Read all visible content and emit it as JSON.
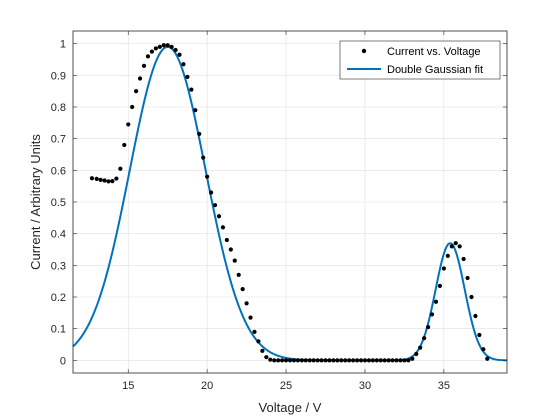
{
  "chart_data": {
    "type": "scatter",
    "title": "",
    "xlabel": "Voltage / V",
    "ylabel": "Current / Arbitrary Units",
    "xlim": [
      11.5,
      39
    ],
    "ylim": [
      -0.04,
      1.04
    ],
    "xticks": [
      15,
      20,
      25,
      30,
      35
    ],
    "xtick_labels": [
      "15",
      "20",
      "25",
      "30",
      "35"
    ],
    "yticks": [
      0,
      0.1,
      0.2,
      0.3,
      0.4,
      0.5,
      0.6,
      0.7,
      0.8,
      0.9,
      1
    ],
    "ytick_labels": [
      "0",
      "0.1",
      "0.2",
      "0.3",
      "0.4",
      "0.5",
      "0.6",
      "0.7",
      "0.8",
      "0.9",
      "1"
    ],
    "grid": true,
    "legend_position": "top-right",
    "series": [
      {
        "name": "Current vs. Voltage",
        "kind": "markers",
        "color": "#000000",
        "x": [
          12.7,
          13.0,
          13.25,
          13.5,
          13.75,
          14.0,
          14.25,
          14.5,
          14.75,
          15.0,
          15.25,
          15.5,
          15.75,
          16.0,
          16.25,
          16.5,
          16.75,
          17.0,
          17.25,
          17.5,
          17.75,
          18.0,
          18.25,
          18.5,
          18.75,
          19.0,
          19.25,
          19.5,
          19.75,
          20.0,
          20.25,
          20.5,
          20.75,
          21.0,
          21.25,
          21.5,
          21.75,
          22.0,
          22.25,
          22.5,
          22.75,
          23.0,
          23.25,
          23.5,
          23.75,
          24.0,
          24.25,
          24.5,
          24.75,
          25.0,
          25.25,
          25.5,
          25.75,
          26.0,
          26.25,
          26.5,
          26.75,
          27.0,
          27.25,
          27.5,
          27.75,
          28.0,
          28.25,
          28.5,
          28.75,
          29.0,
          29.25,
          29.5,
          29.75,
          30.0,
          30.25,
          30.5,
          30.75,
          31.0,
          31.25,
          31.5,
          31.75,
          32.0,
          32.25,
          32.5,
          32.75,
          33.0,
          33.25,
          33.5,
          33.75,
          34.0,
          34.25,
          34.5,
          34.75,
          35.0,
          35.25,
          35.5,
          35.75,
          36.0,
          36.25,
          36.5,
          36.75,
          37.0,
          37.25,
          37.5,
          37.75
        ],
        "y": [
          0.575,
          0.573,
          0.57,
          0.568,
          0.565,
          0.566,
          0.574,
          0.605,
          0.68,
          0.745,
          0.8,
          0.85,
          0.89,
          0.93,
          0.96,
          0.975,
          0.985,
          0.99,
          0.995,
          0.995,
          0.99,
          0.98,
          0.965,
          0.935,
          0.895,
          0.855,
          0.79,
          0.715,
          0.64,
          0.58,
          0.53,
          0.49,
          0.455,
          0.42,
          0.38,
          0.35,
          0.315,
          0.27,
          0.225,
          0.18,
          0.135,
          0.09,
          0.06,
          0.03,
          0.01,
          0.002,
          0.0,
          0.0,
          0.0,
          0.0,
          0.0,
          0.0,
          0.0,
          0.0,
          0.0,
          0.0,
          0.0,
          0.0,
          0.0,
          0.0,
          0.0,
          0.0,
          0.0,
          0.0,
          0.0,
          0.0,
          0.0,
          0.0,
          0.0,
          0.0,
          0.0,
          0.0,
          0.0,
          0.0,
          0.0,
          0.0,
          0.0,
          0.0,
          0.0,
          0.0,
          0.0,
          0.005,
          0.02,
          0.04,
          0.07,
          0.105,
          0.145,
          0.185,
          0.235,
          0.29,
          0.33,
          0.36,
          0.37,
          0.36,
          0.32,
          0.26,
          0.2,
          0.14,
          0.08,
          0.035,
          0.005
        ]
      },
      {
        "name": "Double Gaussian fit",
        "kind": "line",
        "color": "#0072BD",
        "model": "a1*exp(-((x-b1)/c1)^2) + a2*exp(-((x-b2)/c2)^2)",
        "params": {
          "a1": 0.99,
          "b1": 17.5,
          "c1": 3.4,
          "a2": 0.37,
          "b2": 35.4,
          "c2": 1.3
        },
        "x_range": [
          11.5,
          39
        ]
      }
    ]
  }
}
